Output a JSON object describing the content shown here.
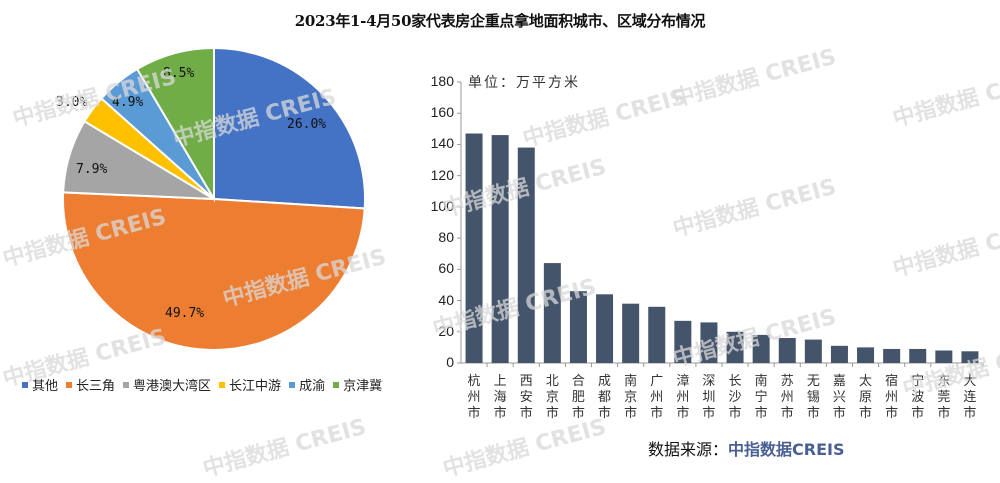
{
  "title": "2023年1-4月50家代表房企重点拿地面积城市、区域分布情况",
  "source": {
    "label": "数据来源：",
    "brand": "中指数据CREIS"
  },
  "watermark_text": "中指数据 CREIS",
  "chart_data": [
    {
      "type": "pie",
      "title": "",
      "start_angle": "12 o'clock, clockwise",
      "categories": [
        "其他",
        "长三角",
        "粤港澳大湾区",
        "长江中游",
        "成渝",
        "京津冀"
      ],
      "values": [
        26.0,
        49.7,
        7.9,
        3.0,
        4.9,
        8.5
      ],
      "labels": [
        "26.0%",
        "49.7%",
        "7.9%",
        "3.0%",
        "4.9%",
        "8.5%"
      ],
      "colors": [
        "#4472c4",
        "#ed7d31",
        "#a5a5a5",
        "#ffc000",
        "#5b9bd5",
        "#70ad47"
      ],
      "legend_position": "bottom"
    },
    {
      "type": "bar",
      "title": "",
      "unit_label": "单位：万平方米",
      "xlabel": "",
      "ylabel": "万平方米",
      "ylim": [
        0,
        180
      ],
      "yticks": [
        0,
        20,
        40,
        60,
        80,
        100,
        120,
        140,
        160,
        180
      ],
      "grid": false,
      "bar_color": "#44546a",
      "categories": [
        "杭州市",
        "上海市",
        "西安市",
        "北京市",
        "合肥市",
        "成都市",
        "南京市",
        "广州市",
        "漳州市",
        "深圳市",
        "长沙市",
        "南宁市",
        "苏州市",
        "无锡市",
        "嘉兴市",
        "太原市",
        "宿州市",
        "宁波市",
        "东莞市",
        "大连市"
      ],
      "values": [
        147,
        146,
        138,
        64,
        46,
        44,
        38,
        36,
        27,
        26,
        20,
        18,
        16,
        15,
        11,
        10,
        9,
        9,
        8,
        7.5
      ]
    }
  ]
}
